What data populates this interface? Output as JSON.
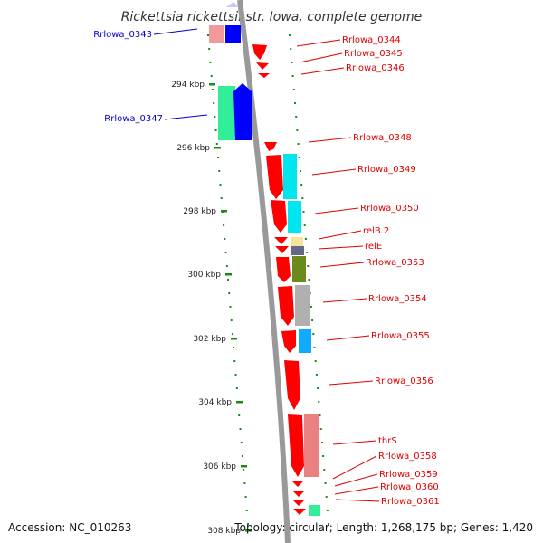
{
  "map": {
    "title": "Rickettsia rickettsii str. Iowa, complete genome",
    "accession": "Accession: NC_010263",
    "topology": "Topology: circular; Length: 1,268,175 bp; Genes: 1,420"
  },
  "ticks": [
    "294 kbp",
    "296 kbp",
    "298 kbp",
    "300 kbp",
    "302 kbp",
    "304 kbp",
    "306 kbp",
    "308 kbp"
  ],
  "colors": {
    "forward_label": "#0000cc",
    "reverse_label": "#dd0000",
    "backbone": "#999999",
    "tick": "#1a8a1a",
    "cds_reverse": "#ff0000",
    "cds_forward": "#0000ff"
  },
  "genes": [
    {
      "name": "Rrlowa_0343",
      "strand": "forward"
    },
    {
      "name": "Rrlowa_0344",
      "strand": "reverse"
    },
    {
      "name": "Rrlowa_0345",
      "strand": "reverse"
    },
    {
      "name": "Rrlowa_0346",
      "strand": "reverse"
    },
    {
      "name": "Rrlowa_0347",
      "strand": "forward"
    },
    {
      "name": "Rrlowa_0348",
      "strand": "reverse"
    },
    {
      "name": "Rrlowa_0349",
      "strand": "reverse"
    },
    {
      "name": "Rrlowa_0350",
      "strand": "reverse"
    },
    {
      "name": "relB.2",
      "strand": "reverse"
    },
    {
      "name": "relE",
      "strand": "reverse"
    },
    {
      "name": "Rrlowa_0353",
      "strand": "reverse"
    },
    {
      "name": "Rrlowa_0354",
      "strand": "reverse"
    },
    {
      "name": "Rrlowa_0355",
      "strand": "reverse"
    },
    {
      "name": "Rrlowa_0356",
      "strand": "reverse"
    },
    {
      "name": "thrS",
      "strand": "reverse"
    },
    {
      "name": "Rrlowa_0358",
      "strand": "reverse"
    },
    {
      "name": "Rrlowa_0359",
      "strand": "reverse"
    },
    {
      "name": "Rrlowa_0360",
      "strand": "reverse"
    },
    {
      "name": "Rrlowa_0361",
      "strand": "reverse"
    }
  ]
}
